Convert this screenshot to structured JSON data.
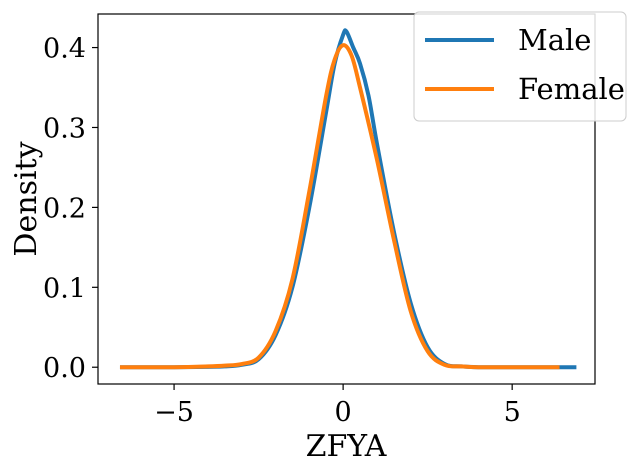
{
  "chart_data": {
    "type": "line",
    "xlabel": "ZFYA",
    "ylabel": "Density",
    "xlim": [
      -7.25,
      7.45
    ],
    "ylim": [
      -0.021,
      0.442
    ],
    "x_ticks": [
      -5,
      0,
      5
    ],
    "x_tick_labels": [
      "−5",
      "0",
      "5"
    ],
    "y_ticks": [
      0.0,
      0.1,
      0.2,
      0.3,
      0.4
    ],
    "y_tick_labels": [
      "0.0",
      "0.1",
      "0.2",
      "0.3",
      "0.4"
    ],
    "grid": false,
    "legend_position": "top-right",
    "series": [
      {
        "name": "Male",
        "color": "#1f77b4",
        "x": [
          -6.6,
          -5,
          -4,
          -3.5,
          -3,
          -2.5,
          -2,
          -1.5,
          -1,
          -0.5,
          -0.25,
          0,
          0.1,
          0.3,
          0.5,
          0.75,
          1,
          1.5,
          2,
          2.5,
          3,
          3.5,
          4,
          5,
          6,
          6.9
        ],
        "y": [
          0,
          0,
          0.0005,
          0.001,
          0.003,
          0.01,
          0.04,
          0.1,
          0.2,
          0.32,
          0.38,
          0.416,
          0.42,
          0.4,
          0.38,
          0.34,
          0.28,
          0.17,
          0.08,
          0.025,
          0.004,
          0.001,
          0,
          0,
          0,
          0
        ]
      },
      {
        "name": "Female",
        "color": "#ff7f0e",
        "x": [
          -6.6,
          -5,
          -4,
          -3.5,
          -3,
          -2.5,
          -2,
          -1.5,
          -1,
          -0.5,
          -0.25,
          0,
          0.25,
          0.5,
          1,
          1.5,
          2,
          2.5,
          3,
          3.5,
          4,
          5,
          6,
          6.4
        ],
        "y": [
          0,
          0,
          0.001,
          0.002,
          0.004,
          0.012,
          0.045,
          0.11,
          0.22,
          0.34,
          0.385,
          0.403,
          0.39,
          0.35,
          0.26,
          0.16,
          0.07,
          0.02,
          0.003,
          0.001,
          0,
          0,
          0,
          0
        ]
      }
    ]
  }
}
